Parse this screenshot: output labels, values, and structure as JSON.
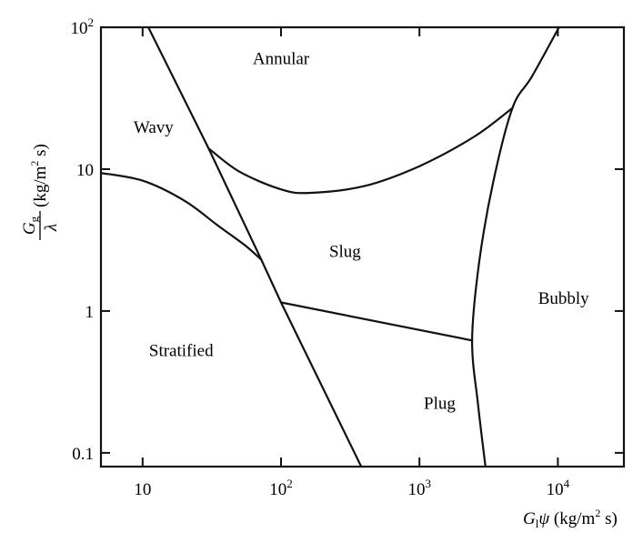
{
  "chart_data": {
    "type": "line",
    "title": "",
    "x_scale": "log",
    "y_scale": "log",
    "xlim": [
      5,
      30000
    ],
    "ylim": [
      0.08,
      100
    ],
    "x_ticks": [
      {
        "value": 10,
        "base": "10",
        "exp": ""
      },
      {
        "value": 100,
        "base": "10",
        "exp": "2"
      },
      {
        "value": 1000,
        "base": "10",
        "exp": "3"
      },
      {
        "value": 10000,
        "base": "10",
        "exp": "4"
      }
    ],
    "y_ticks": [
      {
        "value": 0.1,
        "base": "0.1",
        "exp": ""
      },
      {
        "value": 1,
        "base": "1",
        "exp": ""
      },
      {
        "value": 10,
        "base": "10",
        "exp": ""
      },
      {
        "value": 100,
        "base": "10",
        "exp": "2"
      }
    ],
    "xlabel": {
      "main": "G",
      "sub": "l",
      "var": "ψ",
      "unit_pre": " (kg/m",
      "unit_exp": "2",
      "unit_post": " s)"
    },
    "ylabel": {
      "num_main": "G",
      "num_sub": "g",
      "den": "λ",
      "unit_pre": " (kg/m",
      "unit_exp": "2",
      "unit_post": " s)"
    },
    "grid": false,
    "regions": [
      {
        "name": "Annular",
        "x": 100,
        "y": 55
      },
      {
        "name": "Wavy",
        "x": 12,
        "y": 18
      },
      {
        "name": "Slug",
        "x": 290,
        "y": 2.4
      },
      {
        "name": "Bubbly",
        "x": 11000,
        "y": 1.12
      },
      {
        "name": "Stratified",
        "x": 19,
        "y": 0.48
      },
      {
        "name": "Plug",
        "x": 1400,
        "y": 0.205
      }
    ],
    "series": [
      {
        "points": [
          [
            11,
            100
          ],
          [
            30,
            14
          ],
          [
            72,
            2.3
          ],
          [
            100,
            1.15
          ],
          [
            380,
            0.08
          ]
        ]
      },
      {
        "points": [
          [
            5,
            9.4
          ],
          [
            10,
            8.3
          ],
          [
            20,
            6.0
          ],
          [
            35,
            4.0
          ],
          [
            55,
            2.9
          ],
          [
            72,
            2.3
          ]
        ]
      },
      {
        "points": [
          [
            30,
            14
          ],
          [
            50,
            9.6
          ],
          [
            100,
            7.2
          ],
          [
            160,
            6.8
          ],
          [
            400,
            7.6
          ],
          [
            1000,
            10.5
          ],
          [
            2500,
            17
          ],
          [
            4700,
            27
          ]
        ]
      },
      {
        "points": [
          [
            100,
            1.15
          ],
          [
            2400,
            0.62
          ]
        ]
      },
      {
        "points": [
          [
            10200,
            100
          ],
          [
            6500,
            45
          ],
          [
            4700,
            27
          ],
          [
            3400,
            8
          ],
          [
            2700,
            2.2
          ],
          [
            2400,
            0.62
          ],
          [
            2650,
            0.22
          ],
          [
            3000,
            0.08
          ]
        ]
      }
    ]
  }
}
